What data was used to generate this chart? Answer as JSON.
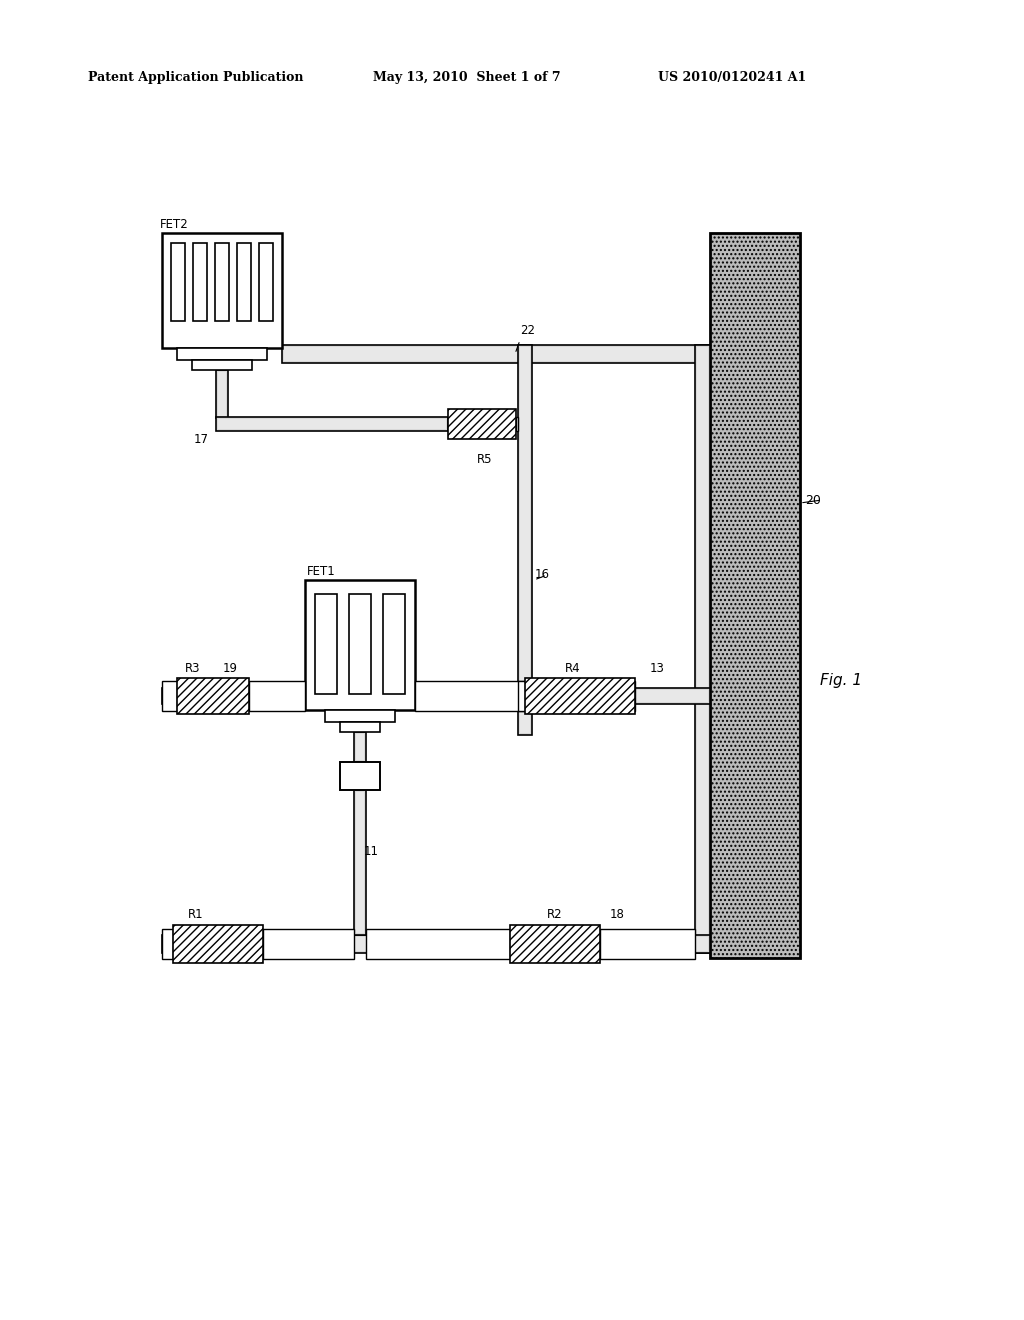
{
  "title_left": "Patent Application Publication",
  "title_mid": "May 13, 2010  Sheet 1 of 7",
  "title_right": "US 2010/0120241 A1",
  "fig_label": "Fig. 1",
  "background": "#ffffff",
  "line_color": "#000000",
  "wire_fill": "#d8d8d8",
  "dot_fill": "#c8c8c8"
}
